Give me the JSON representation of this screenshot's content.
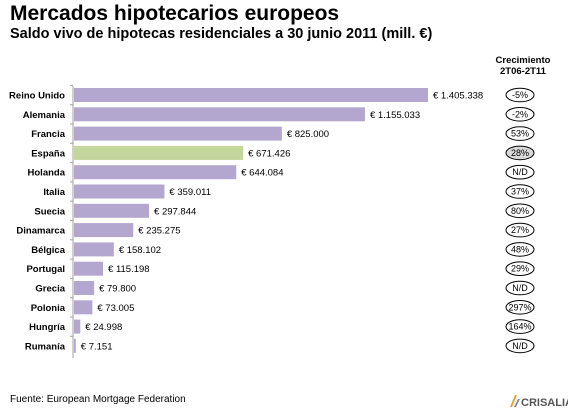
{
  "title": "Mercados hipotecarios europeos",
  "subtitle": "Saldo vivo de hipotecas residenciales a 30 junio 2011 (mill. €)",
  "growth_header": [
    "Crecimiento",
    "2T06-2T11"
  ],
  "footer": "Fuente: European Mortgage Federation",
  "logo_text": "CRISALIA",
  "colors": {
    "bar": "#b4a7cf",
    "highlight": "#c3d69b",
    "axis": "#a0a0a0",
    "ellipse_highlight": "#d9d9d9"
  },
  "chart_data": {
    "type": "bar",
    "orientation": "horizontal",
    "title": "Mercados hipotecarios europeos",
    "subtitle": "Saldo vivo de hipotecas residenciales a 30 junio 2011 (mill. €)",
    "categories": [
      "Reino Unido",
      "Alemania",
      "Francia",
      "España",
      "Holanda",
      "Italia",
      "Suecia",
      "Dinamarca",
      "Bélgica",
      "Portugal",
      "Grecia",
      "Polonia",
      "Hungría",
      "Rumanía"
    ],
    "values": [
      1405338,
      1155033,
      825000,
      671426,
      644084,
      359011,
      297844,
      235275,
      158102,
      115198,
      79800,
      73005,
      24998,
      7151
    ],
    "value_labels": [
      "€ 1.405.338",
      "€ 1.155.033",
      "€ 825.000",
      "€ 671.426",
      "€ 644.084",
      "€ 359.011",
      "€ 297.844",
      "€ 235.275",
      "€ 158.102",
      "€ 115.198",
      "€ 79.800",
      "€ 73.005",
      "€ 24.998",
      "€ 7.151"
    ],
    "growth": [
      "-5%",
      "-2%",
      "53%",
      "28%",
      "N/D",
      "37%",
      "80%",
      "27%",
      "48%",
      "29%",
      "N/D",
      "297%",
      "164%",
      "N/D"
    ],
    "highlight_category": "España",
    "xlim": [
      0,
      1405338
    ],
    "grid": false,
    "legend": "none"
  }
}
